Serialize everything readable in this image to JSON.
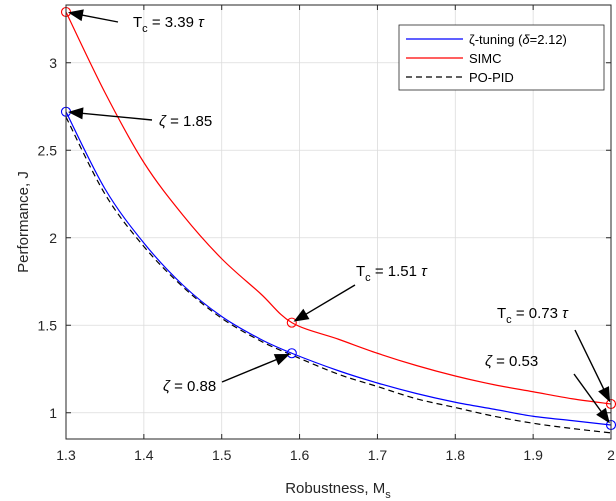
{
  "chart_data": {
    "type": "line",
    "xlabel": "Robustness, M",
    "xlabel_sub": "s",
    "ylabel": "Performance, J",
    "xlim": [
      1.3,
      2.0
    ],
    "ylim": [
      0.85,
      3.33
    ],
    "xticks": [
      1.3,
      1.4,
      1.5,
      1.6,
      1.7,
      1.8,
      1.9,
      2.0
    ],
    "xtick_labels": [
      "1.3",
      "1.4",
      "1.5",
      "1.6",
      "1.7",
      "1.8",
      "1.9",
      "2"
    ],
    "yticks": [
      1.0,
      1.5,
      2.0,
      2.5,
      3.0
    ],
    "ytick_labels": [
      "1",
      "1.5",
      "2",
      "2.5",
      "3"
    ],
    "grid": true,
    "legend_position": "top-right",
    "legend": [
      {
        "label_prefix": "ζ-tuning (",
        "label_delta": "δ",
        "label_suffix": "=2.12)",
        "color": "#0000ff",
        "dash": "solid"
      },
      {
        "label": "SIMC",
        "color": "#ff0000",
        "dash": "solid"
      },
      {
        "label": "PO-PID",
        "color": "#000000",
        "dash": "dashed"
      }
    ],
    "series": [
      {
        "name": "ζ-tuning (δ=2.12)",
        "color": "#0000ff",
        "dash": "solid",
        "x": [
          1.3,
          1.35,
          1.4,
          1.45,
          1.5,
          1.55,
          1.59,
          1.65,
          1.7,
          1.75,
          1.8,
          1.85,
          1.9,
          1.95,
          2.0
        ],
        "y": [
          2.72,
          2.28,
          1.97,
          1.73,
          1.55,
          1.42,
          1.34,
          1.24,
          1.17,
          1.11,
          1.06,
          1.02,
          0.98,
          0.955,
          0.93
        ]
      },
      {
        "name": "SIMC",
        "color": "#ff0000",
        "dash": "solid",
        "x": [
          1.3,
          1.35,
          1.4,
          1.45,
          1.5,
          1.55,
          1.59,
          1.65,
          1.7,
          1.75,
          1.8,
          1.85,
          1.9,
          1.95,
          2.0
        ],
        "y": [
          3.29,
          2.83,
          2.43,
          2.13,
          1.88,
          1.68,
          1.515,
          1.42,
          1.34,
          1.27,
          1.21,
          1.16,
          1.12,
          1.08,
          1.05
        ]
      },
      {
        "name": "PO-PID",
        "color": "#000000",
        "dash": "dashed",
        "x": [
          1.3,
          1.35,
          1.4,
          1.45,
          1.5,
          1.55,
          1.59,
          1.65,
          1.7,
          1.75,
          1.8,
          1.85,
          1.9,
          1.95,
          2.0
        ],
        "y": [
          2.69,
          2.25,
          1.95,
          1.72,
          1.54,
          1.41,
          1.33,
          1.22,
          1.15,
          1.08,
          1.03,
          0.98,
          0.94,
          0.91,
          0.885
        ]
      }
    ],
    "markers": [
      {
        "x": 1.3,
        "y": 3.29,
        "color": "#ff0000"
      },
      {
        "x": 1.3,
        "y": 2.72,
        "color": "#0000ff"
      },
      {
        "x": 1.59,
        "y": 1.515,
        "color": "#ff0000"
      },
      {
        "x": 1.59,
        "y": 1.34,
        "color": "#0000ff"
      },
      {
        "x": 2.0,
        "y": 1.05,
        "color": "#ff0000"
      },
      {
        "x": 2.0,
        "y": 0.93,
        "color": "#0000ff"
      }
    ],
    "annotations": [
      {
        "kind": "Tc",
        "base": "T",
        "sub": "c",
        "rest": " = 3.39 ",
        "sym": "τ",
        "point": [
          1.3,
          3.29
        ]
      },
      {
        "kind": "zeta",
        "sym": "ζ",
        "rest": " = 1.85",
        "point": [
          1.3,
          2.72
        ]
      },
      {
        "kind": "Tc",
        "base": "T",
        "sub": "c",
        "rest": " = 1.51 ",
        "sym": "τ",
        "point": [
          1.59,
          1.515
        ]
      },
      {
        "kind": "zeta",
        "sym": "ζ",
        "rest": " = 0.88",
        "point": [
          1.59,
          1.34
        ]
      },
      {
        "kind": "Tc",
        "base": "T",
        "sub": "c",
        "rest": " = 0.73 ",
        "sym": "τ",
        "point": [
          2.0,
          1.05
        ]
      },
      {
        "kind": "zeta",
        "sym": "ζ",
        "rest": " = 0.53",
        "point": [
          2.0,
          0.93
        ]
      }
    ]
  }
}
